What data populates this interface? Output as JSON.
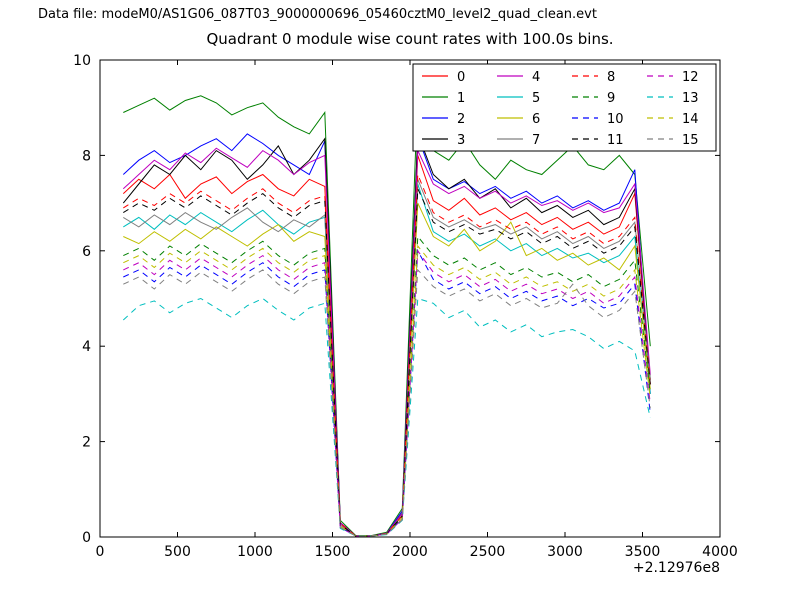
{
  "header": {
    "data_file_label": "Data file: modeM0/AS1G06_087T03_9000000696_05460cztM0_level2_quad_clean.evt"
  },
  "chart_data": {
    "type": "line",
    "title": "Quadrant 0 module wise count rates with 100.0s bins.",
    "xlabel": "",
    "ylabel": "",
    "xlim": [
      0,
      4000
    ],
    "ylim": [
      0,
      10
    ],
    "xticks": [
      0,
      500,
      1000,
      1500,
      2000,
      2500,
      3000,
      3500,
      4000
    ],
    "yticks": [
      0,
      2,
      4,
      6,
      8,
      10
    ],
    "x_offset_label": "+2.12976e8",
    "grid": false,
    "legend_position": "upper right",
    "legend_columns": 4,
    "x": [
      150,
      250,
      350,
      450,
      550,
      650,
      750,
      850,
      950,
      1050,
      1150,
      1250,
      1350,
      1450,
      1550,
      1650,
      1750,
      1850,
      1950,
      2050,
      2150,
      2250,
      2350,
      2450,
      2550,
      2650,
      2750,
      2850,
      2950,
      3050,
      3150,
      3250,
      3350,
      3450,
      3550
    ],
    "series": [
      {
        "name": "0",
        "color": "#ff0000",
        "dash": "solid",
        "values": [
          7.2,
          7.5,
          7.3,
          7.6,
          7.1,
          7.4,
          7.55,
          7.2,
          7.45,
          7.6,
          7.3,
          7.15,
          7.5,
          7.35,
          0.3,
          0.02,
          0.02,
          0.08,
          0.5,
          8.0,
          7.05,
          6.85,
          7.1,
          6.75,
          6.9,
          6.65,
          6.8,
          6.55,
          6.7,
          6.45,
          6.6,
          6.35,
          6.5,
          7.2,
          3.2
        ]
      },
      {
        "name": "1",
        "color": "#008000",
        "dash": "solid",
        "values": [
          8.9,
          9.05,
          9.2,
          8.95,
          9.15,
          9.25,
          9.1,
          8.85,
          9.0,
          9.1,
          8.8,
          8.6,
          8.45,
          8.9,
          0.35,
          0.03,
          0.03,
          0.1,
          0.6,
          9.35,
          8.1,
          7.9,
          8.3,
          7.8,
          7.5,
          7.9,
          7.7,
          7.6,
          7.9,
          8.2,
          7.8,
          7.7,
          8.0,
          7.6,
          4.0
        ]
      },
      {
        "name": "2",
        "color": "#0000ff",
        "dash": "solid",
        "values": [
          7.6,
          7.9,
          8.1,
          7.85,
          8.0,
          8.2,
          8.35,
          8.1,
          8.45,
          8.25,
          8.0,
          7.8,
          7.6,
          8.3,
          0.3,
          0.02,
          0.02,
          0.08,
          0.55,
          8.4,
          7.5,
          7.3,
          7.45,
          7.2,
          7.35,
          7.1,
          7.25,
          7.0,
          7.15,
          6.9,
          7.05,
          6.85,
          7.0,
          7.7,
          3.0
        ]
      },
      {
        "name": "3",
        "color": "#000000",
        "dash": "solid",
        "values": [
          7.0,
          7.4,
          7.8,
          7.6,
          8.0,
          7.7,
          8.1,
          7.9,
          7.5,
          7.8,
          8.2,
          7.6,
          7.9,
          8.35,
          0.3,
          0.02,
          0.02,
          0.08,
          0.5,
          8.45,
          7.6,
          7.3,
          7.5,
          7.1,
          7.3,
          6.9,
          7.1,
          6.8,
          6.95,
          6.7,
          6.85,
          6.55,
          6.7,
          7.3,
          3.3
        ]
      },
      {
        "name": "4",
        "color": "#bf00bf",
        "dash": "solid",
        "values": [
          7.3,
          7.6,
          7.9,
          7.7,
          8.05,
          7.85,
          8.15,
          7.95,
          7.75,
          8.1,
          7.9,
          7.6,
          7.85,
          8.0,
          0.3,
          0.02,
          0.02,
          0.08,
          0.5,
          8.1,
          7.4,
          7.2,
          7.35,
          7.1,
          7.25,
          7.0,
          7.15,
          6.95,
          7.05,
          6.85,
          7.0,
          6.8,
          6.9,
          7.4,
          3.4
        ]
      },
      {
        "name": "5",
        "color": "#00bfbf",
        "dash": "solid",
        "values": [
          6.5,
          6.7,
          6.45,
          6.75,
          6.55,
          6.8,
          6.6,
          6.4,
          6.65,
          6.85,
          6.55,
          6.35,
          6.6,
          6.7,
          0.25,
          0.02,
          0.02,
          0.07,
          0.45,
          7.4,
          6.4,
          6.2,
          6.35,
          6.1,
          6.25,
          6.0,
          6.15,
          5.9,
          6.05,
          5.85,
          5.95,
          5.75,
          5.9,
          6.3,
          3.0
        ]
      },
      {
        "name": "6",
        "color": "#bfbf00",
        "dash": "solid",
        "values": [
          6.3,
          6.15,
          6.4,
          6.2,
          6.45,
          6.25,
          6.5,
          6.3,
          6.1,
          6.35,
          6.55,
          6.2,
          6.4,
          6.3,
          0.25,
          0.02,
          0.02,
          0.07,
          0.45,
          7.0,
          6.3,
          6.1,
          6.45,
          6.0,
          6.2,
          6.6,
          5.9,
          6.05,
          5.8,
          5.95,
          5.7,
          5.85,
          5.6,
          6.1,
          3.1
        ]
      },
      {
        "name": "7",
        "color": "#808080",
        "dash": "solid",
        "values": [
          6.7,
          6.5,
          6.75,
          6.55,
          6.8,
          6.6,
          6.45,
          6.7,
          6.9,
          6.6,
          6.4,
          6.65,
          6.5,
          6.75,
          0.25,
          0.02,
          0.02,
          0.07,
          0.45,
          7.5,
          6.7,
          6.5,
          6.65,
          6.45,
          6.55,
          6.35,
          6.5,
          6.25,
          6.4,
          6.15,
          6.3,
          6.05,
          6.2,
          6.6,
          3.3
        ]
      },
      {
        "name": "8",
        "color": "#ff0000",
        "dash": "dashed",
        "values": [
          6.9,
          7.1,
          6.95,
          7.2,
          7.0,
          7.25,
          7.05,
          6.85,
          7.1,
          7.3,
          7.0,
          6.8,
          7.05,
          7.15,
          0.28,
          0.02,
          0.02,
          0.07,
          0.45,
          7.6,
          6.8,
          6.6,
          6.75,
          6.5,
          6.65,
          6.45,
          6.6,
          6.35,
          6.5,
          6.25,
          6.4,
          6.15,
          6.3,
          6.7,
          3.2
        ]
      },
      {
        "name": "9",
        "color": "#008000",
        "dash": "dashed",
        "values": [
          5.9,
          6.05,
          5.8,
          6.1,
          5.9,
          6.15,
          5.95,
          5.75,
          6.0,
          6.2,
          5.9,
          5.7,
          5.95,
          6.05,
          0.22,
          0.02,
          0.02,
          0.06,
          0.4,
          6.3,
          5.9,
          5.7,
          5.85,
          5.6,
          5.75,
          5.5,
          5.65,
          5.45,
          5.55,
          5.35,
          5.5,
          5.25,
          5.4,
          5.8,
          3.0
        ]
      },
      {
        "name": "10",
        "color": "#0000ff",
        "dash": "dashed",
        "values": [
          5.45,
          5.6,
          5.35,
          5.65,
          5.45,
          5.7,
          5.5,
          5.3,
          5.55,
          5.75,
          5.45,
          5.25,
          5.5,
          5.6,
          0.2,
          0.02,
          0.02,
          0.06,
          0.38,
          6.0,
          5.4,
          5.2,
          5.35,
          5.1,
          5.25,
          5.0,
          5.15,
          4.95,
          5.05,
          4.85,
          5.0,
          4.8,
          4.9,
          5.3,
          2.6
        ]
      },
      {
        "name": "11",
        "color": "#000000",
        "dash": "dashed",
        "values": [
          6.8,
          7.0,
          6.85,
          7.1,
          6.9,
          7.15,
          6.95,
          6.75,
          7.0,
          7.2,
          6.9,
          6.7,
          6.95,
          7.05,
          0.26,
          0.02,
          0.02,
          0.07,
          0.44,
          7.3,
          6.6,
          6.4,
          6.55,
          6.35,
          6.45,
          6.25,
          6.4,
          6.15,
          6.3,
          6.05,
          6.2,
          5.95,
          6.1,
          6.5,
          3.2
        ]
      },
      {
        "name": "12",
        "color": "#bf00bf",
        "dash": "dashed",
        "values": [
          5.6,
          5.75,
          5.5,
          5.8,
          5.6,
          5.85,
          5.65,
          5.45,
          5.7,
          5.9,
          5.6,
          5.4,
          5.65,
          5.75,
          0.2,
          0.02,
          0.02,
          0.06,
          0.38,
          6.0,
          5.55,
          5.35,
          5.5,
          5.25,
          5.4,
          5.15,
          5.3,
          5.1,
          5.2,
          5.0,
          5.15,
          4.9,
          5.05,
          5.45,
          2.8
        ]
      },
      {
        "name": "13",
        "color": "#00bfbf",
        "dash": "dashed",
        "values": [
          4.55,
          4.85,
          4.95,
          4.7,
          4.9,
          5.0,
          4.8,
          4.6,
          4.85,
          5.0,
          4.75,
          4.55,
          4.8,
          4.9,
          0.18,
          0.02,
          0.02,
          0.05,
          0.35,
          5.0,
          4.9,
          4.6,
          4.75,
          4.4,
          4.55,
          4.3,
          4.45,
          4.2,
          4.3,
          4.35,
          4.2,
          3.95,
          4.1,
          3.9,
          2.5
        ]
      },
      {
        "name": "14",
        "color": "#bfbf00",
        "dash": "dashed",
        "values": [
          5.75,
          5.9,
          5.65,
          5.95,
          5.75,
          6.0,
          5.8,
          5.6,
          5.85,
          6.05,
          5.75,
          5.55,
          5.8,
          5.9,
          0.22,
          0.02,
          0.02,
          0.06,
          0.4,
          6.1,
          5.7,
          5.5,
          5.65,
          5.4,
          5.55,
          5.3,
          5.45,
          5.25,
          5.35,
          5.15,
          5.3,
          5.05,
          5.2,
          5.6,
          2.9
        ]
      },
      {
        "name": "15",
        "color": "#808080",
        "dash": "dashed",
        "values": [
          5.3,
          5.45,
          5.2,
          5.5,
          5.3,
          5.55,
          5.35,
          5.15,
          5.4,
          5.6,
          5.3,
          5.1,
          5.35,
          5.45,
          0.2,
          0.02,
          0.02,
          0.06,
          0.36,
          5.6,
          5.25,
          5.05,
          5.2,
          4.95,
          5.1,
          4.85,
          5.0,
          4.8,
          4.9,
          5.3,
          4.85,
          4.6,
          4.75,
          5.15,
          2.7
        ]
      }
    ]
  }
}
